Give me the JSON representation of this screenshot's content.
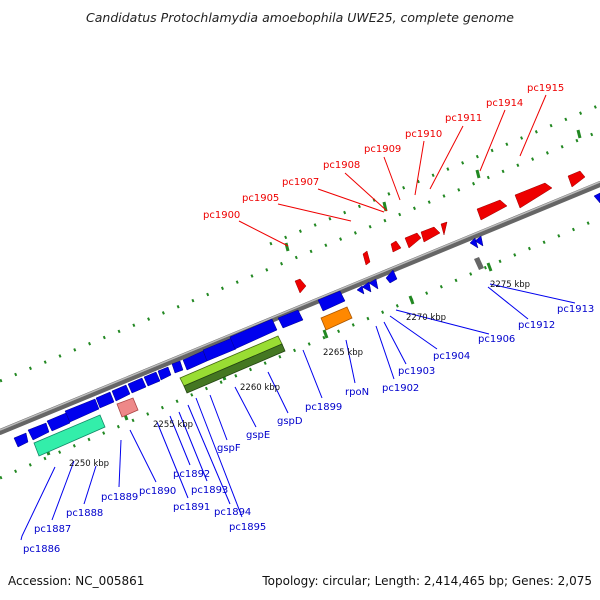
{
  "title": "Candidatus Protochlamydia amoebophila UWE25, complete genome",
  "footer": {
    "accession": "Accession: NC_005861",
    "summary": "Topology: circular; Length: 2,414,465 bp; Genes: 2,075"
  },
  "colors": {
    "top_strand": "#ff0000",
    "bottom_strand": "#0000ff",
    "backbone": "#777777",
    "tick": "#228822",
    "pseudo": "#666666"
  },
  "scale_labels": [
    "2250 kbp",
    "2255 kbp",
    "2260 kbp",
    "2265 kbp",
    "2270 kbp",
    "2275 kbp"
  ],
  "top_labels": [
    "pc1900",
    "pc1905",
    "pc1907",
    "pc1908",
    "pc1909",
    "pc1910",
    "pc1911",
    "pc1914",
    "pc1915"
  ],
  "bottom_labels": [
    "pc1886",
    "pc1887",
    "pc1888",
    "pc1889",
    "pc1890",
    "pc1891",
    "pc1892",
    "pc1893",
    "pc1894",
    "pc1895",
    "gspF",
    "gspE",
    "gspD",
    "pc1899",
    "rpoN",
    "pc1902",
    "pc1903",
    "pc1904",
    "pc1906",
    "pc1912",
    "pc1913"
  ]
}
